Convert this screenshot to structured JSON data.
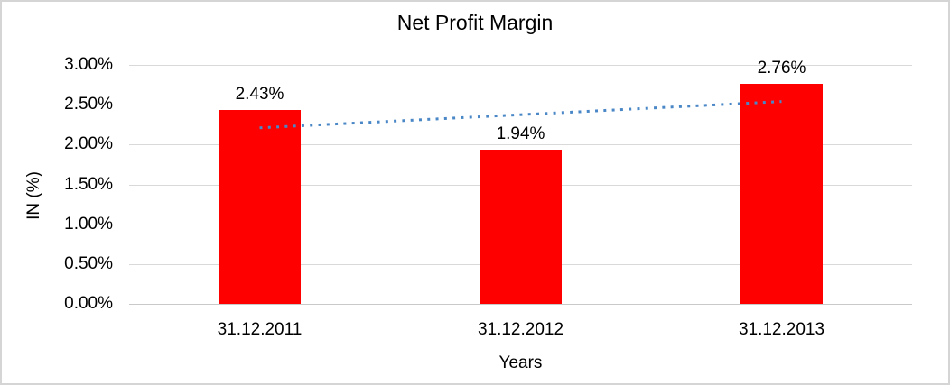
{
  "window": {
    "background": "#ffffff",
    "border_color": "#d5d5d5"
  },
  "chart_data": {
    "type": "bar",
    "title": "Net Profit Margin",
    "xlabel": "Years",
    "ylabel": "IN (%)",
    "categories": [
      "31.12.2011",
      "31.12.2012",
      "31.12.2013"
    ],
    "values": [
      2.43,
      1.94,
      2.76
    ],
    "data_labels": [
      "2.43%",
      "1.94%",
      "2.76%"
    ],
    "y_ticks": [
      {
        "value": 3.0,
        "label": "3.00%"
      },
      {
        "value": 2.5,
        "label": "2.50%"
      },
      {
        "value": 2.0,
        "label": "2.00%"
      },
      {
        "value": 1.5,
        "label": "1.50%"
      },
      {
        "value": 1.0,
        "label": "1.00%"
      },
      {
        "value": 0.5,
        "label": "0.50%"
      },
      {
        "value": 0.0,
        "label": "0.00%"
      }
    ],
    "ylim": [
      0,
      3.0
    ],
    "grid": true,
    "legend": "none",
    "bar_color": "#ff0000",
    "gridline_color": "#d9d9d9",
    "text_color": "#000000",
    "trendline": {
      "type": "linear",
      "style": "dotted",
      "color": "#4a87c6",
      "start_value": 2.21,
      "end_value": 2.54
    }
  }
}
